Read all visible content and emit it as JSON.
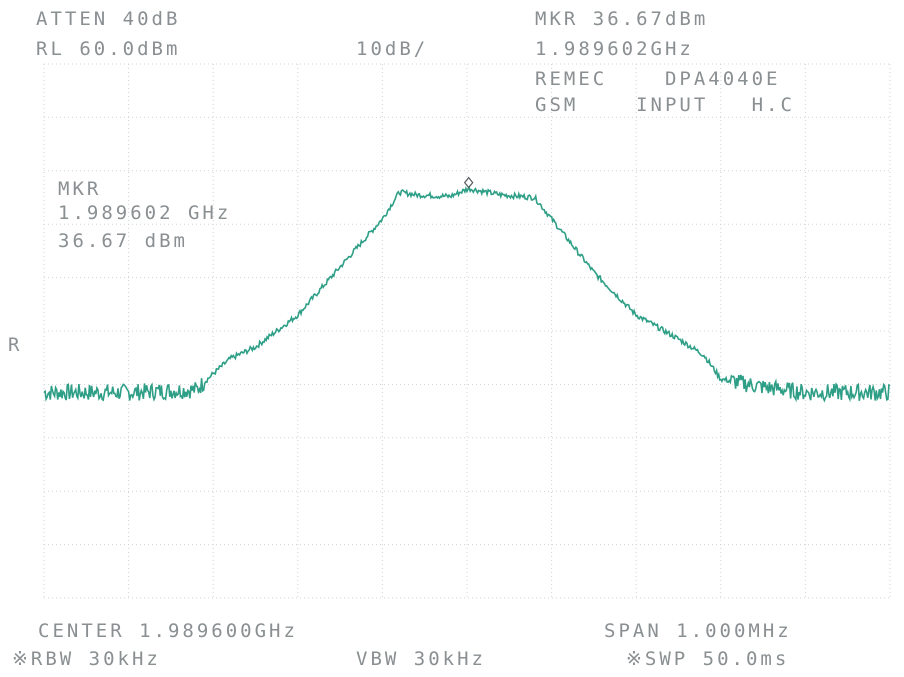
{
  "header": {
    "atten": "ATTEN 40dB",
    "ref_level": "RL 60.0dBm",
    "scale": "10dB/",
    "marker_level": "MKR 36.67dBm",
    "marker_freq": "1.989602GHz",
    "device_line": "REMEC    DPA4040E",
    "input_line": "GSM    INPUT   H.C"
  },
  "marker_box": {
    "title": "MKR",
    "freq": "1.989602 GHz",
    "level": "36.67 dBm"
  },
  "side_label": "R",
  "footer": {
    "center": "CENTER 1.989600GHz",
    "span": "SPAN 1.000MHz",
    "rbw": "※RBW 30kHz",
    "vbw": "VBW 30kHz",
    "swp": "※SWP 50.0ms"
  },
  "colors": {
    "trace": "#2e9f86",
    "grid": "#cfd3d5",
    "text": "#8a8f92"
  },
  "chart_data": {
    "type": "line",
    "xlabel": "CENTER 1.989600GHz / SPAN 1.000MHz",
    "ylabel": "",
    "x_unit": "MHz offset from center",
    "xlim": [
      -0.5,
      0.5
    ],
    "ylim": [
      -40,
      60
    ],
    "grid": true,
    "marker": {
      "x": 0.002,
      "y": 36.67
    },
    "series": [
      {
        "x": [
          -0.5,
          -0.4,
          -0.32,
          -0.3,
          -0.28,
          -0.25,
          -0.2,
          -0.15,
          -0.1,
          -0.08,
          -0.06,
          -0.02,
          0.002,
          0.04,
          0.08,
          0.1,
          0.15,
          0.2,
          0.25,
          0.28,
          0.3,
          0.35,
          0.4,
          0.5
        ],
        "y": [
          -1.5,
          -1.5,
          -1.0,
          2.0,
          4.8,
          7.0,
          13.0,
          22.0,
          31.0,
          36.0,
          35.5,
          35.2,
          36.67,
          35.5,
          35.0,
          31.0,
          21.0,
          13.0,
          8.5,
          5.5,
          1.0,
          -0.5,
          -1.5,
          -1.5
        ]
      }
    ]
  }
}
